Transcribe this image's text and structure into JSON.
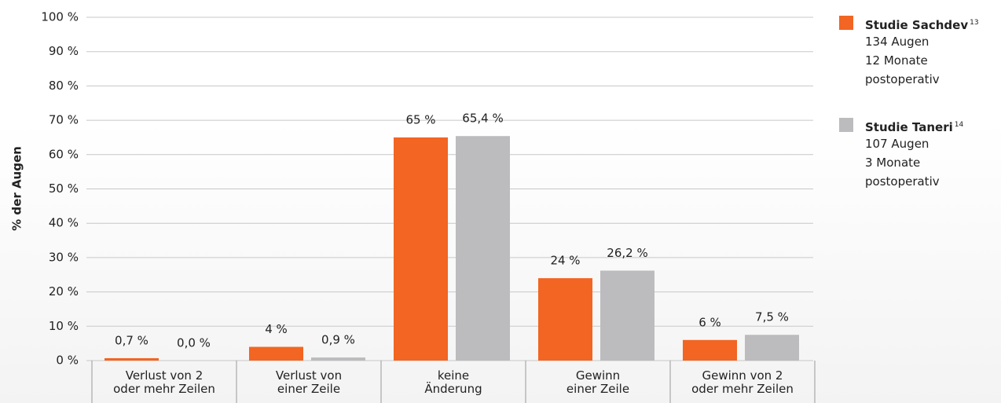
{
  "chart_data": {
    "type": "bar",
    "y_label": "% der Augen",
    "categories": [
      "Verlust von 2\noder mehr Zeilen",
      "Verlust von\neiner Zeile",
      "keine\nÄnderung",
      "Gewinn\neiner Zeile",
      "Gewinn von 2\noder mehr Zeilen"
    ],
    "series": [
      {
        "name": "Studie Sachdev",
        "note_ref": "13",
        "details": [
          "134 Augen",
          "12 Monate",
          "postoperativ"
        ],
        "color": "#f26522",
        "values": [
          0.7,
          4,
          65,
          24,
          6
        ],
        "value_labels": [
          "0,7 %",
          "4 %",
          "65 %",
          "24 %",
          "6 %"
        ]
      },
      {
        "name": "Studie Taneri",
        "note_ref": "14",
        "details": [
          "107 Augen",
          "3 Monate",
          "postoperativ"
        ],
        "color": "#bcbcbe",
        "values": [
          0.0,
          0.9,
          65.4,
          26.2,
          7.5
        ],
        "value_labels": [
          "0,0 %",
          "0,9 %",
          "65,4 %",
          "26,2 %",
          "7,5 %"
        ]
      }
    ],
    "ylim": [
      0,
      100
    ],
    "yticks": [
      {
        "value": 0,
        "label": "0 %"
      },
      {
        "value": 10,
        "label": "10 %"
      },
      {
        "value": 20,
        "label": "20 %"
      },
      {
        "value": 30,
        "label": "30 %"
      },
      {
        "value": 40,
        "label": "40 %"
      },
      {
        "value": 50,
        "label": "50 %"
      },
      {
        "value": 60,
        "label": "60 %"
      },
      {
        "value": 70,
        "label": "70 %"
      },
      {
        "value": 80,
        "label": "80 %"
      },
      {
        "value": 90,
        "label": "90 %"
      },
      {
        "value": 100,
        "label": "100 %"
      }
    ],
    "grid": true,
    "legend": "right"
  }
}
